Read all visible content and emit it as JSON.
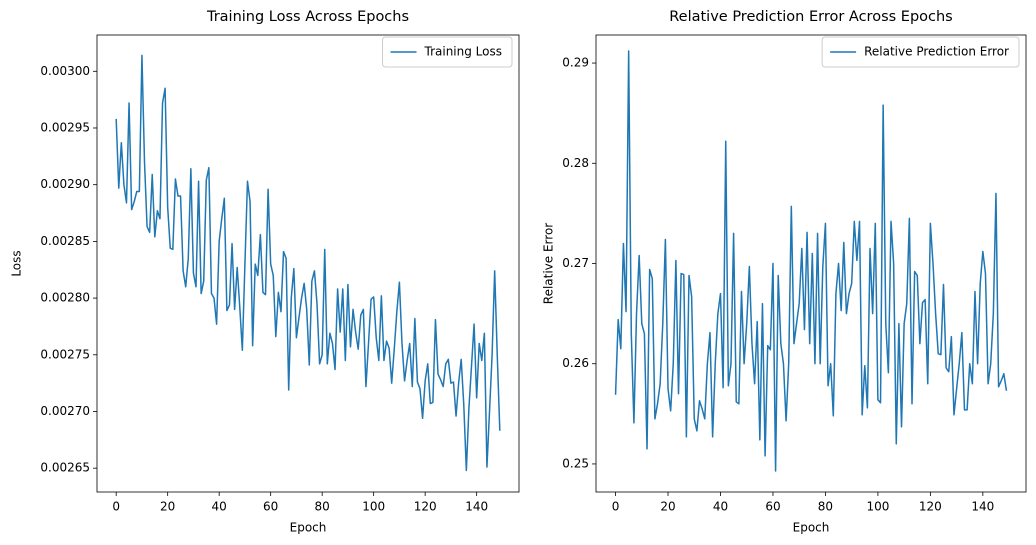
{
  "chart_data": [
    {
      "type": "line",
      "title": "Training Loss Across Epochs",
      "x_label": "Epoch",
      "y_label": "Loss",
      "legend": "upper right",
      "x": [
        0,
        1,
        2,
        3,
        4,
        5,
        6,
        7,
        8,
        9,
        10,
        11,
        12,
        13,
        14,
        15,
        16,
        17,
        18,
        19,
        20,
        21,
        22,
        23,
        24,
        25,
        26,
        27,
        28,
        29,
        30,
        31,
        32,
        33,
        34,
        35,
        36,
        37,
        38,
        39,
        40,
        41,
        42,
        43,
        44,
        45,
        46,
        47,
        48,
        49,
        50,
        51,
        52,
        53,
        54,
        55,
        56,
        57,
        58,
        59,
        60,
        61,
        62,
        63,
        64,
        65,
        66,
        67,
        68,
        69,
        70,
        71,
        72,
        73,
        74,
        75,
        76,
        77,
        78,
        79,
        80,
        81,
        82,
        83,
        84,
        85,
        86,
        87,
        88,
        89,
        90,
        91,
        92,
        93,
        94,
        95,
        96,
        97,
        98,
        99,
        100,
        101,
        102,
        103,
        104,
        105,
        106,
        107,
        108,
        109,
        110,
        111,
        112,
        113,
        114,
        115,
        116,
        117,
        118,
        119,
        120,
        121,
        122,
        123,
        124,
        125,
        126,
        127,
        128,
        129,
        130,
        131,
        132,
        133,
        134,
        135,
        136,
        137,
        138,
        139,
        140,
        141,
        142,
        143,
        144,
        145,
        146,
        147,
        148,
        149
      ],
      "series": [
        {
          "name": "Training Loss",
          "color": "#1f77b4",
          "values": [
            0.002958,
            0.002897,
            0.002937,
            0.0029,
            0.002884,
            0.002972,
            0.002878,
            0.002885,
            0.002894,
            0.002894,
            0.003014,
            0.00292,
            0.002863,
            0.002858,
            0.002909,
            0.002854,
            0.002877,
            0.00287,
            0.002972,
            0.002985,
            0.00288,
            0.002844,
            0.002843,
            0.002905,
            0.00289,
            0.00289,
            0.002824,
            0.00281,
            0.002835,
            0.002914,
            0.002822,
            0.00281,
            0.002903,
            0.002804,
            0.002815,
            0.002904,
            0.002915,
            0.002804,
            0.0028,
            0.002777,
            0.00285,
            0.00287,
            0.002888,
            0.002789,
            0.002794,
            0.002848,
            0.00279,
            0.002827,
            0.002792,
            0.002754,
            0.00283,
            0.002903,
            0.002885,
            0.002758,
            0.00283,
            0.00282,
            0.002856,
            0.002805,
            0.002803,
            0.002896,
            0.00283,
            0.00282,
            0.002766,
            0.002805,
            0.002788,
            0.002841,
            0.002835,
            0.002719,
            0.0028,
            0.002826,
            0.002765,
            0.002783,
            0.0028,
            0.002813,
            0.00279,
            0.002741,
            0.002815,
            0.002824,
            0.002795,
            0.002742,
            0.00275,
            0.002843,
            0.002742,
            0.002769,
            0.00276,
            0.002737,
            0.002808,
            0.00277,
            0.002808,
            0.002745,
            0.002812,
            0.002757,
            0.00279,
            0.00277,
            0.002755,
            0.002785,
            0.00279,
            0.002722,
            0.00276,
            0.002799,
            0.002801,
            0.002765,
            0.002745,
            0.002802,
            0.002745,
            0.002762,
            0.002756,
            0.002725,
            0.002755,
            0.002788,
            0.002814,
            0.00276,
            0.002727,
            0.002745,
            0.00276,
            0.002722,
            0.002782,
            0.002726,
            0.00272,
            0.002694,
            0.002727,
            0.002742,
            0.002707,
            0.002708,
            0.002781,
            0.002733,
            0.002728,
            0.002722,
            0.002742,
            0.002746,
            0.002725,
            0.002726,
            0.002696,
            0.002725,
            0.002746,
            0.002706,
            0.002648,
            0.002703,
            0.00274,
            0.002777,
            0.002712,
            0.00276,
            0.002745,
            0.002769,
            0.002651,
            0.0027,
            0.00275,
            0.002824,
            0.00275,
            0.002683
          ]
        }
      ],
      "xlim": [
        -7.45,
        156.45
      ],
      "ylim": [
        0.002629,
        0.003032
      ],
      "xticks": [
        0,
        20,
        40,
        60,
        80,
        100,
        120,
        140
      ],
      "yticks": [
        0.00265,
        {
          "value": 0.0027,
          "label": "0.00270"
        },
        0.00275,
        {
          "value": 0.0028,
          "label": "0.00280"
        },
        0.00285,
        {
          "value": 0.0029,
          "label": "0.00290"
        },
        0.00295,
        {
          "value": 0.003,
          "label": "0.00300"
        }
      ]
    },
    {
      "type": "line",
      "title": "Relative Prediction Error Across Epochs",
      "x_label": "Epoch",
      "y_label": "Relative Error",
      "legend": "upper right",
      "x": [
        0,
        1,
        2,
        3,
        4,
        5,
        6,
        7,
        8,
        9,
        10,
        11,
        12,
        13,
        14,
        15,
        16,
        17,
        18,
        19,
        20,
        21,
        22,
        23,
        24,
        25,
        26,
        27,
        28,
        29,
        30,
        31,
        32,
        33,
        34,
        35,
        36,
        37,
        38,
        39,
        40,
        41,
        42,
        43,
        44,
        45,
        46,
        47,
        48,
        49,
        50,
        51,
        52,
        53,
        54,
        55,
        56,
        57,
        58,
        59,
        60,
        61,
        62,
        63,
        64,
        65,
        66,
        67,
        68,
        69,
        70,
        71,
        72,
        73,
        74,
        75,
        76,
        77,
        78,
        79,
        80,
        81,
        82,
        83,
        84,
        85,
        86,
        87,
        88,
        89,
        90,
        91,
        92,
        93,
        94,
        95,
        96,
        97,
        98,
        99,
        100,
        101,
        102,
        103,
        104,
        105,
        106,
        107,
        108,
        109,
        110,
        111,
        112,
        113,
        114,
        115,
        116,
        117,
        118,
        119,
        120,
        121,
        122,
        123,
        124,
        125,
        126,
        127,
        128,
        129,
        130,
        131,
        132,
        133,
        134,
        135,
        136,
        137,
        138,
        139,
        140,
        141,
        142,
        143,
        144,
        145,
        146,
        147,
        148,
        149
      ],
      "series": [
        {
          "name": "Relative Prediction Error",
          "color": "#1f77b4",
          "values": [
            0.2569,
            0.2644,
            0.2615,
            0.272,
            0.2652,
            0.2912,
            0.263,
            0.2541,
            0.265,
            0.2708,
            0.264,
            0.263,
            0.2515,
            0.2694,
            0.2685,
            0.2545,
            0.256,
            0.258,
            0.264,
            0.2724,
            0.2575,
            0.2553,
            0.26,
            0.2703,
            0.257,
            0.269,
            0.2689,
            0.2527,
            0.2688,
            0.2667,
            0.2545,
            0.2533,
            0.2563,
            0.2555,
            0.2545,
            0.26,
            0.2631,
            0.2527,
            0.26,
            0.265,
            0.267,
            0.2576,
            0.2822,
            0.2578,
            0.26,
            0.273,
            0.2562,
            0.256,
            0.2672,
            0.26,
            0.264,
            0.2697,
            0.262,
            0.258,
            0.2642,
            0.2524,
            0.266,
            0.2508,
            0.2618,
            0.2614,
            0.27,
            0.2493,
            0.2688,
            0.262,
            0.26,
            0.2543,
            0.26,
            0.2757,
            0.262,
            0.264,
            0.266,
            0.2715,
            0.2634,
            0.2731,
            0.262,
            0.271,
            0.26,
            0.273,
            0.26,
            0.2697,
            0.274,
            0.2578,
            0.26,
            0.2548,
            0.267,
            0.27,
            0.2653,
            0.2721,
            0.265,
            0.267,
            0.268,
            0.2742,
            0.2703,
            0.2742,
            0.2549,
            0.2598,
            0.2556,
            0.2715,
            0.265,
            0.274,
            0.2564,
            0.2561,
            0.2858,
            0.264,
            0.2591,
            0.2742,
            0.27,
            0.252,
            0.264,
            0.2537,
            0.264,
            0.266,
            0.2745,
            0.256,
            0.2692,
            0.2688,
            0.262,
            0.2661,
            0.2664,
            0.258,
            0.274,
            0.27,
            0.265,
            0.261,
            0.2609,
            0.2679,
            0.2596,
            0.2592,
            0.2627,
            0.2549,
            0.2575,
            0.26,
            0.2631,
            0.2554,
            0.2554,
            0.26,
            0.258,
            0.2672,
            0.26,
            0.268,
            0.2712,
            0.269,
            0.258,
            0.26,
            0.265,
            0.277,
            0.2577,
            0.2583,
            0.259,
            0.2573
          ]
        }
      ],
      "xlim": [
        -7.45,
        156.45
      ],
      "ylim": [
        0.2472,
        0.2928
      ],
      "xticks": [
        0,
        20,
        40,
        60,
        80,
        100,
        120,
        140
      ],
      "yticks": [
        0.25,
        0.26,
        0.27,
        0.28,
        0.29
      ]
    }
  ]
}
